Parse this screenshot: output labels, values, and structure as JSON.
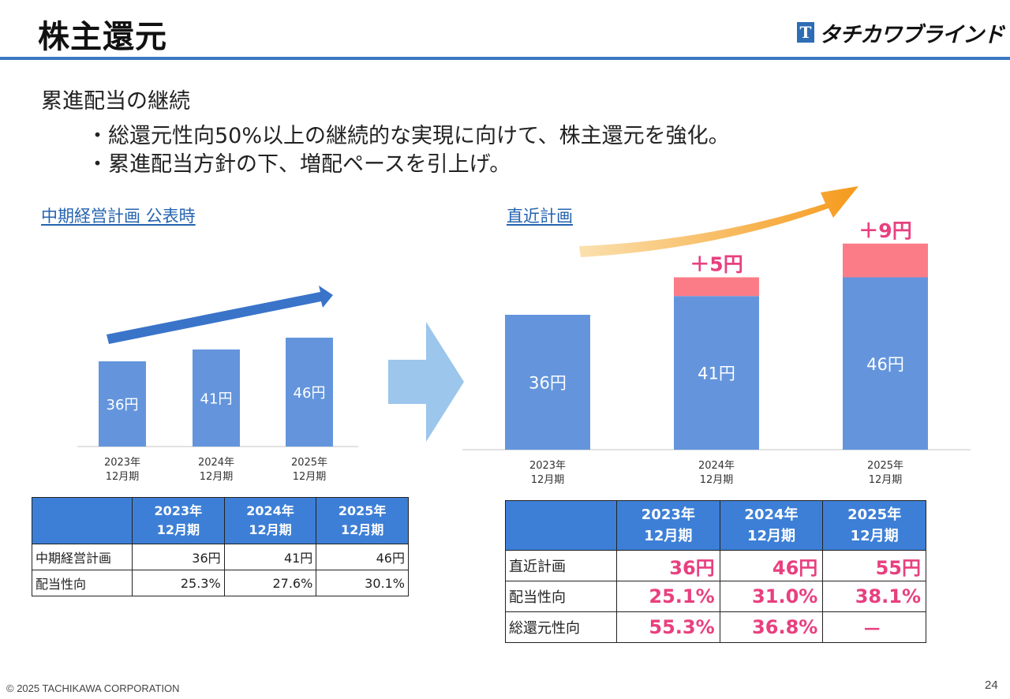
{
  "title": "株主還元",
  "logo": {
    "mark": "T",
    "text": "タチカワブラインド"
  },
  "subtitle": "累進配当の継続",
  "bullets": [
    "・総還元性向50%以上の継続的な実現に向けて、株主還元を強化。",
    "・累進配当方針の下、増配ペースを引上げ。"
  ],
  "left_label": "中期経営計画 公表時",
  "right_label": "直近計画",
  "colors": {
    "bar": "#6495dc",
    "increase": "#fb7c87",
    "header": "#3d7fd6",
    "accent": "#e8407f",
    "arrow_left": "#3a74c9",
    "arrow_mid": "#9cc6ec",
    "arrow_right": "#f59a1c"
  },
  "chart_data": [
    {
      "type": "bar",
      "categories": [
        "2023年\n12月期",
        "2024年\n12月期",
        "2025年\n12月期"
      ],
      "values": [
        36,
        41,
        46
      ],
      "data_labels": [
        "36円",
        "41円",
        "46円"
      ]
    },
    {
      "type": "bar",
      "stacked": true,
      "categories": [
        "2023年\n12月期",
        "2024年\n12月期",
        "2025年\n12月期"
      ],
      "series": [
        {
          "values": [
            36,
            41,
            46
          ]
        },
        {
          "values": [
            0,
            5,
            9
          ]
        }
      ],
      "data_labels": [
        "36円",
        "41円",
        "46円"
      ],
      "increase_labels": [
        "",
        "＋5円",
        "＋9円"
      ]
    }
  ],
  "left_table": {
    "headers": [
      "2023年\n12月期",
      "2024年\n12月期",
      "2025年\n12月期"
    ],
    "rows": [
      {
        "label": "中期経営計画",
        "values": [
          "36円",
          "41円",
          "46円"
        ]
      },
      {
        "label": "配当性向",
        "values": [
          "25.3%",
          "27.6%",
          "30.1%"
        ]
      }
    ]
  },
  "right_table": {
    "headers": [
      "2023年\n12月期",
      "2024年\n12月期",
      "2025年\n12月期"
    ],
    "rows": [
      {
        "label": "直近計画",
        "values": [
          "36円",
          "46円",
          "55円"
        ]
      },
      {
        "label": "配当性向",
        "values": [
          "25.1%",
          "31.0%",
          "38.1%"
        ]
      },
      {
        "label": "総還元性向",
        "values": [
          "55.3%",
          "36.8%",
          "－"
        ]
      }
    ]
  },
  "footer": "© 2025 TACHIKAWA CORPORATION",
  "page_number": "24"
}
